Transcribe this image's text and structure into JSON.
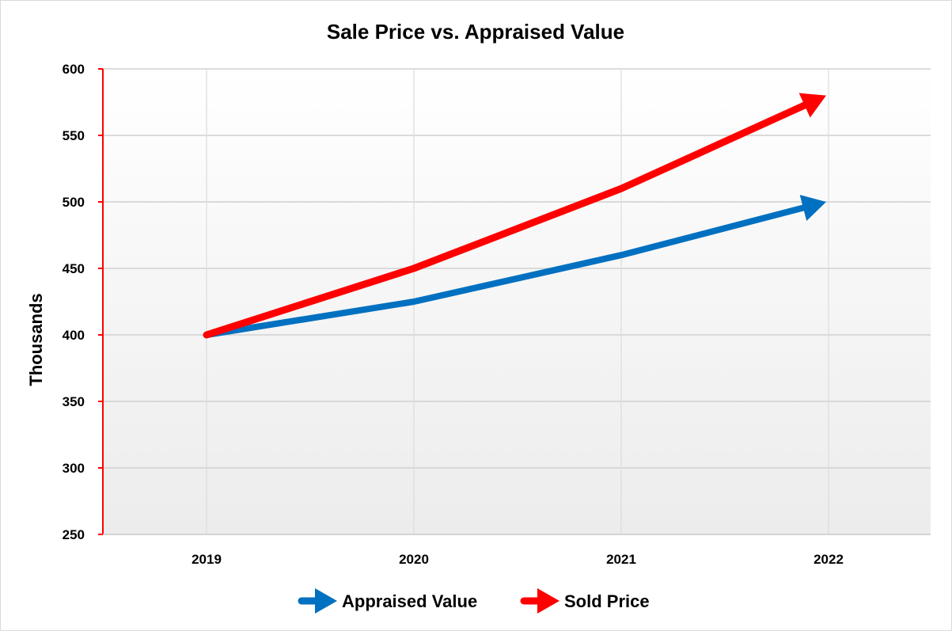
{
  "chart_data": {
    "type": "line",
    "title": "Sale Price vs. Appraised Value",
    "xlabel": "",
    "ylabel": "Thousands",
    "categories": [
      "2019",
      "2020",
      "2021",
      "2022"
    ],
    "ylim": [
      250,
      600
    ],
    "yticks": [
      250,
      300,
      350,
      400,
      450,
      500,
      550,
      600
    ],
    "grid": true,
    "legend_position": "bottom",
    "series": [
      {
        "name": "Appraised Value",
        "values": [
          400,
          425,
          460,
          500
        ],
        "color": "#0070C0",
        "marker_end": "arrow"
      },
      {
        "name": "Sold Price",
        "values": [
          400,
          450,
          510,
          580
        ],
        "color": "#FF0000",
        "marker_end": "arrow"
      }
    ],
    "axis_color": "#FF0000",
    "plot_background": [
      "#ffffff",
      "#ececec"
    ]
  }
}
